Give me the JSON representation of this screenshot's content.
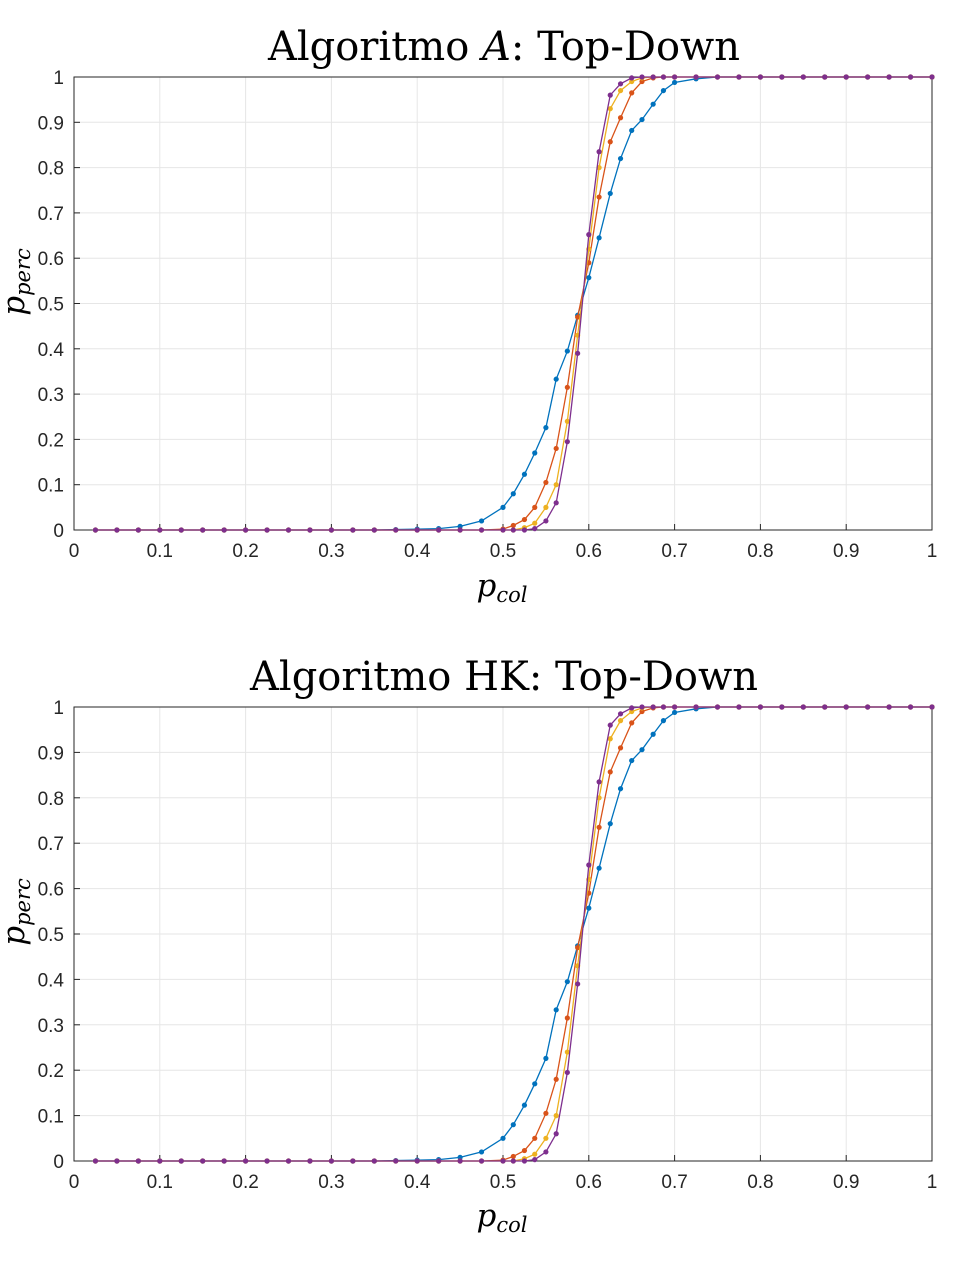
{
  "chart_data": [
    {
      "type": "line",
      "title_prefix": "Algoritmo ",
      "title_math": "A",
      "title_suffix": ": Top-Down",
      "xlabel_base": "p",
      "xlabel_sub": "col",
      "ylabel_base": "p",
      "ylabel_sub": "perc",
      "xlim": [
        0,
        1
      ],
      "ylim": [
        0,
        1
      ],
      "grid": true,
      "xticks": [
        "0",
        "0.1",
        "0.2",
        "0.3",
        "0.4",
        "0.5",
        "0.6",
        "0.7",
        "0.8",
        "0.9",
        "1"
      ],
      "yticks": [
        "0",
        "0.1",
        "0.2",
        "0.3",
        "0.4",
        "0.5",
        "0.6",
        "0.7",
        "0.8",
        "0.9",
        "1"
      ],
      "x": [
        0.025,
        0.05,
        0.075,
        0.1,
        0.125,
        0.15,
        0.175,
        0.2,
        0.225,
        0.25,
        0.275,
        0.3,
        0.325,
        0.35,
        0.375,
        0.4,
        0.425,
        0.45,
        0.475,
        0.5,
        0.512,
        0.525,
        0.537,
        0.55,
        0.562,
        0.575,
        0.587,
        0.6,
        0.612,
        0.625,
        0.637,
        0.65,
        0.662,
        0.675,
        0.687,
        0.7,
        0.725,
        0.75,
        0.775,
        0.8,
        0.825,
        0.85,
        0.875,
        0.9,
        0.925,
        0.95,
        0.975,
        1.0
      ],
      "series": [
        {
          "color": "#0072BD",
          "values": [
            0,
            0,
            0,
            0,
            0,
            0,
            0,
            0,
            0,
            0,
            0,
            0,
            0,
            0,
            0.001,
            0.002,
            0.003,
            0.008,
            0.02,
            0.05,
            0.08,
            0.123,
            0.17,
            0.226,
            0.333,
            0.395,
            0.474,
            0.557,
            0.645,
            0.743,
            0.82,
            0.882,
            0.906,
            0.94,
            0.97,
            0.988,
            0.996,
            1,
            1,
            1,
            1,
            1,
            1,
            1,
            1,
            1,
            1,
            1
          ]
        },
        {
          "color": "#D95319",
          "values": [
            0,
            0,
            0,
            0,
            0,
            0,
            0,
            0,
            0,
            0,
            0,
            0,
            0,
            0,
            0,
            0,
            0,
            0,
            0,
            0.002,
            0.01,
            0.023,
            0.05,
            0.105,
            0.18,
            0.315,
            0.47,
            0.59,
            0.735,
            0.857,
            0.91,
            0.965,
            0.99,
            0.998,
            1,
            1,
            1,
            1,
            1,
            1,
            1,
            1,
            1,
            1,
            1,
            1,
            1,
            1
          ]
        },
        {
          "color": "#EDB120",
          "values": [
            0,
            0,
            0,
            0,
            0,
            0,
            0,
            0,
            0,
            0,
            0,
            0,
            0,
            0,
            0,
            0,
            0,
            0,
            0,
            0,
            0,
            0.005,
            0.015,
            0.05,
            0.1,
            0.24,
            0.43,
            0.62,
            0.8,
            0.93,
            0.97,
            0.99,
            0.998,
            1,
            1,
            1,
            1,
            1,
            1,
            1,
            1,
            1,
            1,
            1,
            1,
            1,
            1,
            1
          ]
        },
        {
          "color": "#7E2F8E",
          "values": [
            0,
            0,
            0,
            0,
            0,
            0,
            0,
            0,
            0,
            0,
            0,
            0,
            0,
            0,
            0,
            0,
            0,
            0,
            0,
            0,
            0,
            0,
            0.003,
            0.02,
            0.06,
            0.195,
            0.39,
            0.652,
            0.835,
            0.96,
            0.985,
            0.998,
            1,
            1,
            1,
            1,
            1,
            1,
            1,
            1,
            1,
            1,
            1,
            1,
            1,
            1,
            1,
            1
          ]
        }
      ]
    },
    {
      "type": "line",
      "title_prefix": "Algoritmo HK: Top-Down",
      "title_math": "",
      "title_suffix": "",
      "xlabel_base": "p",
      "xlabel_sub": "col",
      "ylabel_base": "p",
      "ylabel_sub": "perc",
      "xlim": [
        0,
        1
      ],
      "ylim": [
        0,
        1
      ],
      "grid": true,
      "xticks": [
        "0",
        "0.1",
        "0.2",
        "0.3",
        "0.4",
        "0.5",
        "0.6",
        "0.7",
        "0.8",
        "0.9",
        "1"
      ],
      "yticks": [
        "0",
        "0.1",
        "0.2",
        "0.3",
        "0.4",
        "0.5",
        "0.6",
        "0.7",
        "0.8",
        "0.9",
        "1"
      ],
      "x": [
        0.025,
        0.05,
        0.075,
        0.1,
        0.125,
        0.15,
        0.175,
        0.2,
        0.225,
        0.25,
        0.275,
        0.3,
        0.325,
        0.35,
        0.375,
        0.4,
        0.425,
        0.45,
        0.475,
        0.5,
        0.512,
        0.525,
        0.537,
        0.55,
        0.562,
        0.575,
        0.587,
        0.6,
        0.612,
        0.625,
        0.637,
        0.65,
        0.662,
        0.675,
        0.687,
        0.7,
        0.725,
        0.75,
        0.775,
        0.8,
        0.825,
        0.85,
        0.875,
        0.9,
        0.925,
        0.95,
        0.975,
        1.0
      ],
      "series": [
        {
          "color": "#0072BD",
          "values": [
            0,
            0,
            0,
            0,
            0,
            0,
            0,
            0,
            0,
            0,
            0,
            0,
            0,
            0,
            0.001,
            0.002,
            0.003,
            0.008,
            0.02,
            0.05,
            0.08,
            0.123,
            0.17,
            0.226,
            0.333,
            0.395,
            0.474,
            0.557,
            0.645,
            0.743,
            0.82,
            0.882,
            0.906,
            0.94,
            0.97,
            0.988,
            0.996,
            1,
            1,
            1,
            1,
            1,
            1,
            1,
            1,
            1,
            1,
            1
          ]
        },
        {
          "color": "#D95319",
          "values": [
            0,
            0,
            0,
            0,
            0,
            0,
            0,
            0,
            0,
            0,
            0,
            0,
            0,
            0,
            0,
            0,
            0,
            0,
            0,
            0.002,
            0.01,
            0.023,
            0.05,
            0.105,
            0.18,
            0.315,
            0.47,
            0.59,
            0.735,
            0.857,
            0.91,
            0.965,
            0.99,
            0.998,
            1,
            1,
            1,
            1,
            1,
            1,
            1,
            1,
            1,
            1,
            1,
            1,
            1,
            1
          ]
        },
        {
          "color": "#EDB120",
          "values": [
            0,
            0,
            0,
            0,
            0,
            0,
            0,
            0,
            0,
            0,
            0,
            0,
            0,
            0,
            0,
            0,
            0,
            0,
            0,
            0,
            0,
            0.005,
            0.015,
            0.05,
            0.1,
            0.24,
            0.43,
            0.62,
            0.8,
            0.93,
            0.97,
            0.99,
            0.998,
            1,
            1,
            1,
            1,
            1,
            1,
            1,
            1,
            1,
            1,
            1,
            1,
            1,
            1,
            1
          ]
        },
        {
          "color": "#7E2F8E",
          "values": [
            0,
            0,
            0,
            0,
            0,
            0,
            0,
            0,
            0,
            0,
            0,
            0,
            0,
            0,
            0,
            0,
            0,
            0,
            0,
            0,
            0,
            0,
            0.003,
            0.02,
            0.06,
            0.195,
            0.39,
            0.652,
            0.835,
            0.96,
            0.985,
            0.998,
            1,
            1,
            1,
            1,
            1,
            1,
            1,
            1,
            1,
            1,
            1,
            1,
            1,
            1,
            1,
            1
          ]
        }
      ]
    }
  ]
}
